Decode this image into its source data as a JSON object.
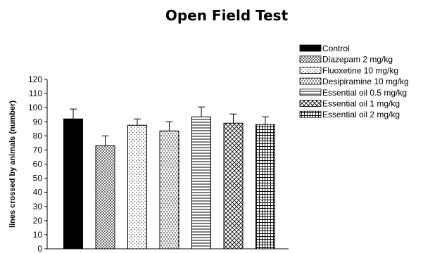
{
  "chart_data": {
    "type": "bar",
    "title": "Open Field Test",
    "xlabel": "",
    "ylabel": "lines crossed by animals (number)",
    "ylim": [
      0,
      120
    ],
    "yticks": [
      0,
      10,
      20,
      30,
      40,
      50,
      60,
      70,
      80,
      90,
      100,
      110,
      120
    ],
    "grid": false,
    "legend_position": "top-right",
    "categories": [
      "Control",
      "Diazepam 2 mg/kg",
      "Fluoxetine 10 mg/kg",
      "Desipiramine 10 mg/kg",
      "Essential oil 0.5 mg/kg",
      "Essential oil 1 mg/kg",
      "Essential oil 2 mg/kg"
    ],
    "values": [
      92,
      73,
      87.5,
      83.5,
      93.5,
      89,
      88
    ],
    "errors": [
      7,
      7,
      4.5,
      6.5,
      7,
      6.5,
      5.5
    ],
    "patterns": [
      "solid-black",
      "dense-dots",
      "sparse-dots",
      "vertical-dashes",
      "horizontal-lines",
      "crosshatch-diagonal",
      "grid"
    ]
  }
}
